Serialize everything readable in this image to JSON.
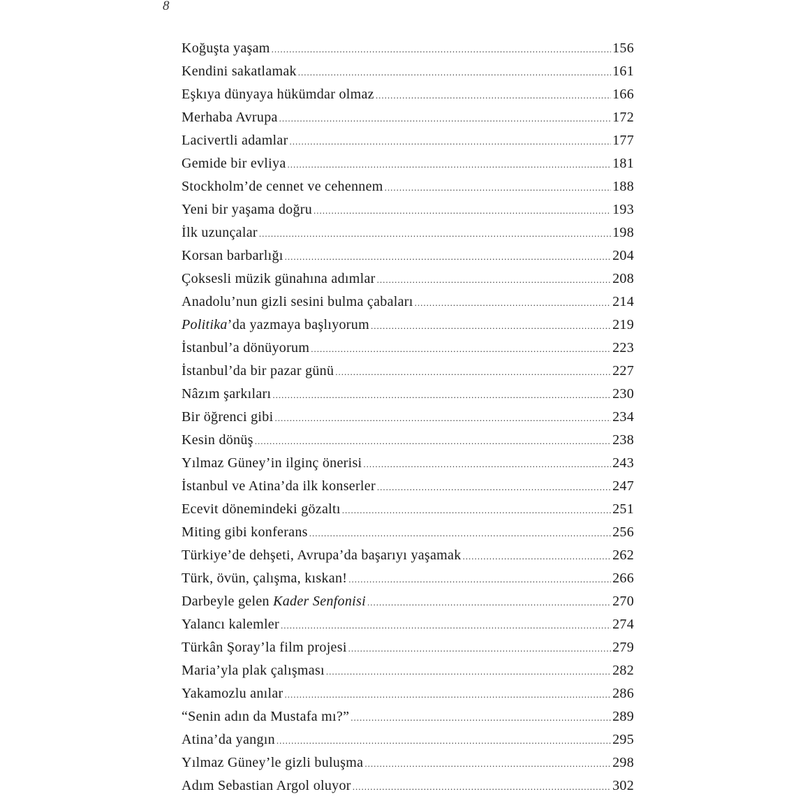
{
  "folio": "8",
  "entries": [
    {
      "pre": "Koğuşta yaşam",
      "page": "156"
    },
    {
      "pre": "Kendini sakatlamak",
      "page": "161"
    },
    {
      "pre": "Eşkıya dünyaya hükümdar olmaz",
      "page": "166"
    },
    {
      "pre": "Merhaba Avrupa",
      "page": "172"
    },
    {
      "pre": "Lacivertli adamlar",
      "page": "177"
    },
    {
      "pre": "Gemide bir evliya",
      "page": "181"
    },
    {
      "pre": "Stockholm’de cennet ve cehennem",
      "page": "188"
    },
    {
      "pre": "Yeni bir yaşama doğru",
      "page": "193"
    },
    {
      "pre": "İlk uzunçalar",
      "page": "198"
    },
    {
      "pre": "Korsan barbarlığı",
      "page": "204"
    },
    {
      "pre": "Çoksesli müzik günahına adımlar",
      "page": "208"
    },
    {
      "pre": "Anadolu’nun gizli sesini bulma çabaları",
      "page": "214"
    },
    {
      "pre": "",
      "italic": "Politika",
      "post": "’da yazmaya başlıyorum",
      "page": "219"
    },
    {
      "pre": "İstanbul’a dönüyorum",
      "page": "223"
    },
    {
      "pre": "İstanbul’da bir pazar günü",
      "page": "227"
    },
    {
      "pre": "Nâzım şarkıları",
      "page": "230"
    },
    {
      "pre": "Bir öğrenci gibi",
      "page": "234"
    },
    {
      "pre": "Kesin dönüş",
      "page": "238"
    },
    {
      "pre": "Yılmaz Güney’in ilginç önerisi",
      "page": "243"
    },
    {
      "pre": "İstanbul ve Atina’da ilk konserler",
      "page": "247"
    },
    {
      "pre": "Ecevit dönemindeki gözaltı",
      "page": "251"
    },
    {
      "pre": "Miting gibi konferans",
      "page": "256"
    },
    {
      "pre": "Türkiye’de dehşeti, Avrupa’da başarıyı yaşamak",
      "page": "262"
    },
    {
      "pre": "Türk, övün, çalışma, kıskan!",
      "page": "266"
    },
    {
      "pre": "Darbeyle gelen ",
      "italic": "Kader Senfonisi",
      "post": "",
      "page": "270"
    },
    {
      "pre": "Yalancı kalemler",
      "page": "274"
    },
    {
      "pre": "Türkân Şoray’la film projesi",
      "page": "279"
    },
    {
      "pre": "Maria’yla plak çalışması",
      "page": "282"
    },
    {
      "pre": "Yakamozlu anılar",
      "page": "286"
    },
    {
      "pre": "“Senin adın da Mustafa mı?”",
      "page": "289"
    },
    {
      "pre": "Atina’da yangın",
      "page": "295"
    },
    {
      "pre": "Yılmaz Güney’le gizli buluşma",
      "page": "298"
    },
    {
      "pre": "Adım Sebastian Argol oluyor",
      "page": "302"
    }
  ]
}
